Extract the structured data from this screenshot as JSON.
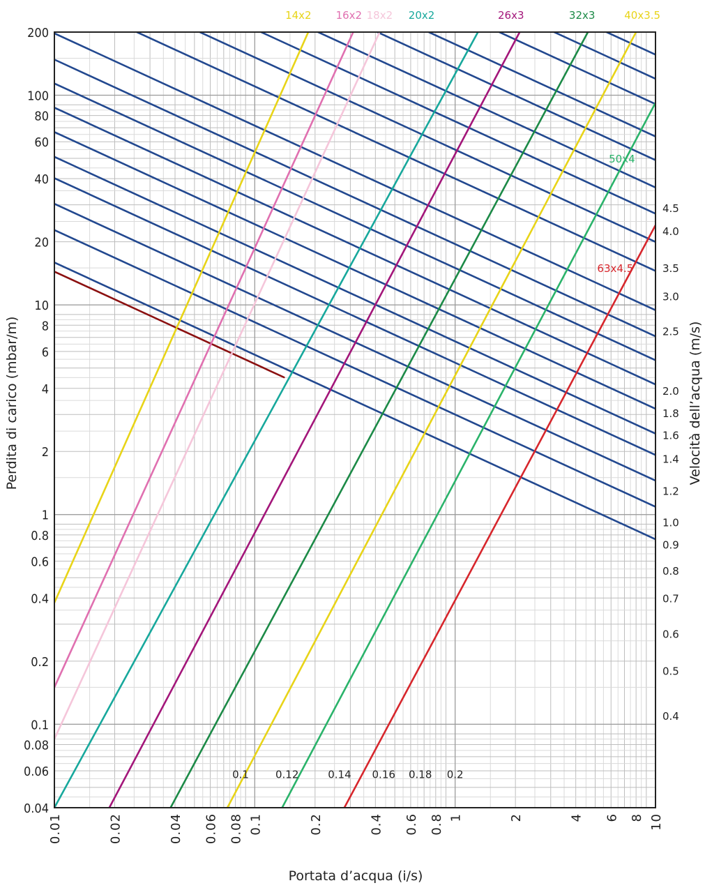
{
  "chart_data": {
    "type": "line",
    "xlabel": "Portata d’acqua (i/s)",
    "ylabel": "Perdita di carico (mbar/m)",
    "y2label": "Velocità dell’acqua (m/s)",
    "x_scale": "log",
    "y_scale": "log",
    "xlim": [
      0.01,
      10
    ],
    "ylim": [
      0.04,
      200
    ],
    "grid": true,
    "x_ticks": [
      {
        "v": 0.01,
        "t": "0.01"
      },
      {
        "v": 0.02,
        "t": "0.02"
      },
      {
        "v": 0.04,
        "t": "0.04"
      },
      {
        "v": 0.06,
        "t": "0.06"
      },
      {
        "v": 0.08,
        "t": "0.08"
      },
      {
        "v": 0.1,
        "t": "0.1"
      },
      {
        "v": 0.2,
        "t": "0.2"
      },
      {
        "v": 0.4,
        "t": "0.4"
      },
      {
        "v": 0.6,
        "t": "0.6"
      },
      {
        "v": 0.8,
        "t": "0.8"
      },
      {
        "v": 1,
        "t": "1"
      },
      {
        "v": 2,
        "t": "2"
      },
      {
        "v": 4,
        "t": "4"
      },
      {
        "v": 6,
        "t": "6"
      },
      {
        "v": 8,
        "t": "8"
      },
      {
        "v": 10,
        "t": "10"
      }
    ],
    "y_ticks": [
      {
        "v": 200,
        "t": "200"
      },
      {
        "v": 100,
        "t": "100"
      },
      {
        "v": 80,
        "t": "80"
      },
      {
        "v": 60,
        "t": "60"
      },
      {
        "v": 40,
        "t": "40"
      },
      {
        "v": 20,
        "t": "20"
      },
      {
        "v": 10,
        "t": "10"
      },
      {
        "v": 8,
        "t": "8"
      },
      {
        "v": 6,
        "t": "6"
      },
      {
        "v": 4,
        "t": "4"
      },
      {
        "v": 2,
        "t": "2"
      },
      {
        "v": 1,
        "t": "1"
      },
      {
        "v": 0.8,
        "t": "0.8"
      },
      {
        "v": 0.6,
        "t": "0.6"
      },
      {
        "v": 0.4,
        "t": "0.4"
      },
      {
        "v": 0.2,
        "t": "0.2"
      },
      {
        "v": 0.1,
        "t": "0.1"
      },
      {
        "v": 0.08,
        "t": "0.08"
      },
      {
        "v": 0.06,
        "t": "0.06"
      },
      {
        "v": 0.04,
        "t": "0.04"
      }
    ],
    "velocity_ticks": [
      {
        "y": 29,
        "t": "4.5"
      },
      {
        "y": 22.5,
        "t": "4.0"
      },
      {
        "y": 15,
        "t": "3.5"
      },
      {
        "y": 11,
        "t": "3.0"
      },
      {
        "y": 7.5,
        "t": "2.5"
      },
      {
        "y": 3.9,
        "t": "2.0"
      },
      {
        "y": 3.05,
        "t": "1.8"
      },
      {
        "y": 2.4,
        "t": "1.6"
      },
      {
        "y": 1.85,
        "t": "1.4"
      },
      {
        "y": 1.3,
        "t": "1.2"
      },
      {
        "y": 0.92,
        "t": "1.0"
      },
      {
        "y": 0.72,
        "t": "0.9"
      },
      {
        "y": 0.54,
        "t": "0.8"
      },
      {
        "y": 0.4,
        "t": "0.7"
      },
      {
        "y": 0.27,
        "t": "0.6"
      },
      {
        "y": 0.18,
        "t": "0.5"
      },
      {
        "y": 0.11,
        "t": "0.4"
      }
    ],
    "velocity_labels_bottom": [
      {
        "x": 0.085,
        "y": 0.058,
        "t": "0.1"
      },
      {
        "x": 0.145,
        "y": 0.058,
        "t": "0.12"
      },
      {
        "x": 0.265,
        "y": 0.058,
        "t": "0.14"
      },
      {
        "x": 0.44,
        "y": 0.058,
        "t": "0.16"
      },
      {
        "x": 0.67,
        "y": 0.058,
        "t": "0.18"
      },
      {
        "x": 1.0,
        "y": 0.058,
        "t": "0.2"
      }
    ],
    "velocity_lines": [
      {
        "a": 1.9,
        "b": -0.44,
        "color": "#8b1010",
        "x0": 0.01,
        "x1": 0.14
      },
      {
        "a": 2.1,
        "b": -0.44,
        "color": "#22488f"
      },
      {
        "a": 3.0,
        "b": -0.44,
        "color": "#22488f"
      },
      {
        "a": 4.0,
        "b": -0.44,
        "color": "#22488f"
      },
      {
        "a": 5.3,
        "b": -0.44,
        "color": "#22488f"
      },
      {
        "a": 6.7,
        "b": -0.44,
        "color": "#22488f"
      },
      {
        "a": 8.8,
        "b": -0.44,
        "color": "#22488f"
      },
      {
        "a": 11.5,
        "b": -0.44,
        "color": "#22488f"
      },
      {
        "a": 15.0,
        "b": -0.44,
        "color": "#22488f"
      },
      {
        "a": 19.5,
        "b": -0.44,
        "color": "#22488f"
      },
      {
        "a": 26.0,
        "b": -0.44,
        "color": "#22488f"
      },
      {
        "a": 40.0,
        "b": -0.44,
        "color": "#22488f"
      },
      {
        "a": 55.0,
        "b": -0.44,
        "color": "#22488f"
      },
      {
        "a": 75.0,
        "b": -0.44,
        "color": "#22488f"
      },
      {
        "a": 100.0,
        "b": -0.44,
        "color": "#22488f"
      },
      {
        "a": 135.0,
        "b": -0.44,
        "color": "#22488f"
      },
      {
        "a": 175.0,
        "b": -0.44,
        "color": "#22488f"
      },
      {
        "a": 250.0,
        "b": -0.44,
        "color": "#22488f"
      },
      {
        "a": 330.0,
        "b": -0.44,
        "color": "#22488f"
      },
      {
        "a": 430.0,
        "b": -0.44,
        "color": "#22488f"
      },
      {
        "a": 560.0,
        "b": -0.44,
        "color": "#22488f"
      },
      {
        "a": 740.0,
        "b": -0.44,
        "color": "#22488f"
      },
      {
        "a": 980.0,
        "b": -0.44,
        "color": "#22488f"
      },
      {
        "a": 1300.0,
        "b": -0.44,
        "color": "#22488f"
      },
      {
        "a": 1700.0,
        "b": -0.44,
        "color": "#22488f"
      },
      {
        "a": 2250.0,
        "b": -0.44,
        "color": "#22488f"
      },
      {
        "a": 2950.0,
        "b": -0.44,
        "color": "#22488f"
      },
      {
        "a": 3900.0,
        "b": -0.44,
        "color": "#22488f"
      },
      {
        "a": 5100.0,
        "b": -0.44,
        "color": "#22488f"
      },
      {
        "a": 6700.0,
        "b": -0.44,
        "color": "#22488f"
      }
    ],
    "series": [
      {
        "name": "14x2",
        "color": "#e8d418",
        "p0": [
          0.01,
          0.38
        ],
        "p1": [
          0.185,
          200
        ]
      },
      {
        "name": "16x2",
        "color": "#e070b0",
        "p0": [
          0.01,
          0.15
        ],
        "p1": [
          0.31,
          200
        ]
      },
      {
        "name": "18x2",
        "color": "#f5c6da",
        "p0": [
          0.01,
          0.085
        ],
        "p1": [
          0.42,
          200
        ]
      },
      {
        "name": "20x2",
        "color": "#17a89c",
        "p0": [
          0.01,
          0.04
        ],
        "p1": [
          1.3,
          200
        ]
      },
      {
        "name": "26x3",
        "color": "#a3167a",
        "p0": [
          0.0188,
          0.04
        ],
        "p1": [
          2.1,
          200
        ]
      },
      {
        "name": "32x3",
        "color": "#1c8a47",
        "p0": [
          0.038,
          0.04
        ],
        "p1": [
          4.6,
          200
        ]
      },
      {
        "name": "40x3.5",
        "color": "#e8d418",
        "p0": [
          0.073,
          0.04
        ],
        "p1": [
          8.0,
          200
        ]
      },
      {
        "name": "50x4",
        "color": "#2ab36a",
        "p0": [
          0.137,
          0.04
        ],
        "p1": [
          10,
          92
        ]
      },
      {
        "name": "63x4.5",
        "color": "#d7262c",
        "p0": [
          0.28,
          0.04
        ],
        "p1": [
          10,
          24
        ]
      }
    ],
    "series_labels": [
      {
        "name": "14x2",
        "color": "#e8d418",
        "x": 0.165,
        "y": 270
      },
      {
        "name": "16x2",
        "color": "#e070b0",
        "x": 0.295,
        "y": 270
      },
      {
        "name": "18x2",
        "color": "#f5c6da",
        "x": 0.42,
        "y": 270
      },
      {
        "name": "20x2",
        "color": "#17a89c",
        "x": 0.68,
        "y": 270
      },
      {
        "name": "26x3",
        "color": "#a3167a",
        "x": 1.9,
        "y": 270
      },
      {
        "name": "32x3",
        "color": "#1c8a47",
        "x": 4.3,
        "y": 270
      },
      {
        "name": "40x3.5",
        "color": "#e8d418",
        "x": 8.6,
        "y": 270
      },
      {
        "name": "50x4",
        "color": "#2ab36a",
        "x": 6.8,
        "y": 50
      },
      {
        "name": "63x4.5",
        "color": "#d7262c",
        "x": 6.3,
        "y": 15
      }
    ]
  }
}
